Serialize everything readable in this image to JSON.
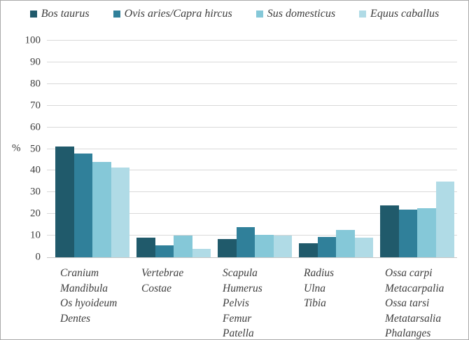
{
  "y_axis_title": "%",
  "chart_data": {
    "type": "bar",
    "title": "",
    "ylabel": "%",
    "xlabel": "",
    "ylim": [
      0,
      100
    ],
    "yticks": [
      0,
      10,
      20,
      30,
      40,
      50,
      60,
      70,
      80,
      90,
      100
    ],
    "grid": true,
    "legend_position": "top",
    "categories": [
      [
        "Cranium",
        "Mandibula",
        "Os hyoideum",
        "Dentes"
      ],
      [
        "Vertebrae",
        "Costae"
      ],
      [
        "Scapula",
        "Humerus",
        "Pelvis",
        "Femur",
        "Patella"
      ],
      [
        "Radius",
        "Ulna",
        "Tibia"
      ],
      [
        "Ossa carpi",
        "Metacarpalia",
        "Ossa tarsi",
        "Metatarsalia",
        "Phalanges"
      ]
    ],
    "series": [
      {
        "name": "Bos taurus",
        "color": "#205a6b",
        "values": [
          51,
          9,
          8.5,
          6.5,
          24
        ]
      },
      {
        "name": "Ovis aries/Capra hircus",
        "color": "#30809a",
        "values": [
          48,
          5.5,
          14,
          9.5,
          22
        ]
      },
      {
        "name": "Sus domesticus",
        "color": "#85c8d8",
        "values": [
          44,
          10,
          10.5,
          12.5,
          22.5
        ]
      },
      {
        "name": "Equus caballus",
        "color": "#b0dbe6",
        "values": [
          41.5,
          4,
          10,
          9,
          35
        ]
      }
    ]
  },
  "colors": {
    "gridline": "#d9d9d9",
    "axis_line": "#c6c6c6",
    "text": "#3d3d3d",
    "border": "#a9a9a9",
    "background": "#ffffff"
  }
}
